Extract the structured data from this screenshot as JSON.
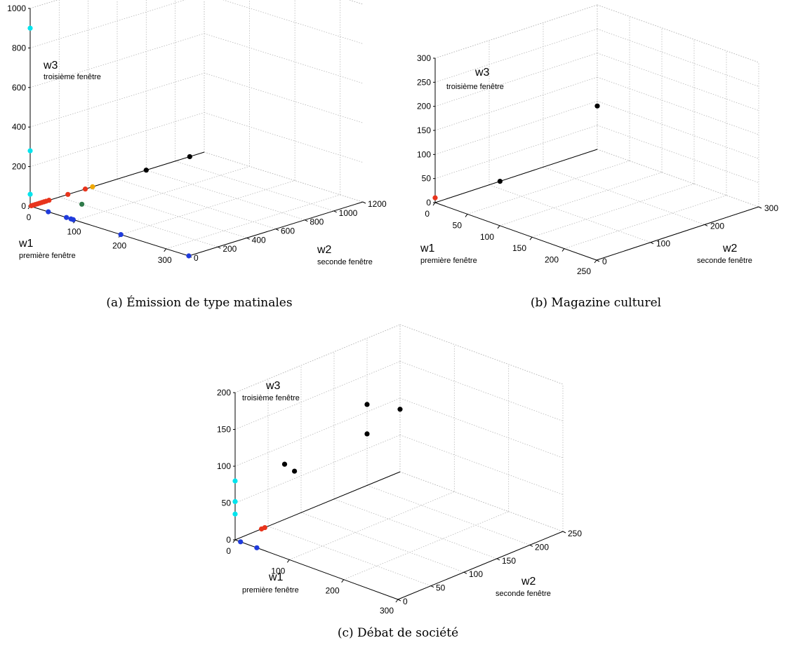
{
  "chart_data": [
    {
      "type": "scatter3d",
      "caption": "(a) Émission de type matinales",
      "axes": {
        "x": {
          "name": "w1",
          "sub": "première fenêtre",
          "range": [
            0,
            350
          ],
          "ticks": [
            0,
            100,
            200,
            300
          ]
        },
        "y": {
          "name": "w2",
          "sub": "seconde fenêtre",
          "range": [
            0,
            1200
          ],
          "ticks": [
            0,
            200,
            400,
            600,
            800,
            1000,
            1200
          ]
        },
        "z": {
          "name": "w3",
          "sub": "troisième fenêtre",
          "range": [
            0,
            1000
          ],
          "ticks": [
            0,
            200,
            400,
            600,
            800,
            1000
          ]
        }
      },
      "grid": true,
      "points": [
        {
          "x": 0,
          "y": 0,
          "z": 900,
          "color": "#00e5ee"
        },
        {
          "x": 0,
          "y": 0,
          "z": 280,
          "color": "#00e5ee"
        },
        {
          "x": 0,
          "y": 0,
          "z": 60,
          "color": "#00e5ee"
        },
        {
          "x": 40,
          "y": 0,
          "z": 0,
          "color": "#1f3bdc"
        },
        {
          "x": 80,
          "y": 0,
          "z": 0,
          "color": "#1f3bdc"
        },
        {
          "x": 90,
          "y": 0,
          "z": 0,
          "color": "#1f3bdc"
        },
        {
          "x": 95,
          "y": 0,
          "z": 0,
          "color": "#1f3bdc"
        },
        {
          "x": 200,
          "y": 0,
          "z": 0,
          "color": "#1f3bdc"
        },
        {
          "x": 350,
          "y": 0,
          "z": 0,
          "color": "#1f3bdc"
        },
        {
          "x": 0,
          "y": 8,
          "z": 0,
          "color": "#e8341c"
        },
        {
          "x": 0,
          "y": 20,
          "z": 0,
          "color": "#e8341c"
        },
        {
          "x": 0,
          "y": 35,
          "z": 0,
          "color": "#e8341c"
        },
        {
          "x": 0,
          "y": 50,
          "z": 0,
          "color": "#e8341c"
        },
        {
          "x": 0,
          "y": 65,
          "z": 0,
          "color": "#e8341c"
        },
        {
          "x": 0,
          "y": 80,
          "z": 0,
          "color": "#e8341c"
        },
        {
          "x": 0,
          "y": 95,
          "z": 0,
          "color": "#e8341c"
        },
        {
          "x": 0,
          "y": 110,
          "z": 0,
          "color": "#e8341c"
        },
        {
          "x": 0,
          "y": 130,
          "z": 0,
          "color": "#e8341c"
        },
        {
          "x": 0,
          "y": 260,
          "z": 0,
          "color": "#e8341c"
        },
        {
          "x": 0,
          "y": 380,
          "z": 0,
          "color": "#e8341c"
        },
        {
          "x": 0,
          "y": 430,
          "z": 0,
          "color": "#f0a800"
        },
        {
          "x": 0,
          "y": 1100,
          "z": 0,
          "color": "#000000"
        },
        {
          "x": 0,
          "y": 800,
          "z": 0,
          "color": "#000000"
        },
        {
          "x": 50,
          "y": 200,
          "z": 0,
          "color": "#2f7a4a"
        }
      ]
    },
    {
      "type": "scatter3d",
      "caption": "(b) Magazine culturel",
      "axes": {
        "x": {
          "name": "w1",
          "sub": "première fenêtre",
          "range": [
            0,
            250
          ],
          "ticks": [
            0,
            50,
            100,
            150,
            200,
            250
          ]
        },
        "y": {
          "name": "w2",
          "sub": "seconde fenêtre",
          "range": [
            0,
            300
          ],
          "ticks": [
            0,
            100,
            200,
            300
          ]
        },
        "z": {
          "name": "w3",
          "sub": "troisième fenêtre",
          "range": [
            0,
            300
          ],
          "ticks": [
            0,
            50,
            100,
            150,
            200,
            250,
            300
          ]
        }
      },
      "grid": true,
      "points": [
        {
          "x": 0,
          "y": 0,
          "z": 10,
          "color": "#e8341c"
        },
        {
          "x": 0,
          "y": 120,
          "z": 0,
          "color": "#000000"
        },
        {
          "x": 0,
          "y": 300,
          "z": 90,
          "color": "#000000"
        }
      ]
    },
    {
      "type": "scatter3d",
      "caption": "(c) Débat de société",
      "axes": {
        "x": {
          "name": "w1",
          "sub": "première fenêtre",
          "range": [
            0,
            300
          ],
          "ticks": [
            0,
            100,
            200,
            300
          ]
        },
        "y": {
          "name": "w2",
          "sub": "seconde fenêtre",
          "range": [
            0,
            250
          ],
          "ticks": [
            0,
            50,
            100,
            150,
            200,
            250
          ]
        },
        "z": {
          "name": "w3",
          "sub": "troisième fenêtre",
          "range": [
            0,
            200
          ],
          "ticks": [
            0,
            50,
            100,
            150,
            200
          ]
        }
      },
      "grid": true,
      "points": [
        {
          "x": 0,
          "y": 0,
          "z": 80,
          "color": "#00e5ee"
        },
        {
          "x": 0,
          "y": 0,
          "z": 52,
          "color": "#00e5ee"
        },
        {
          "x": 0,
          "y": 0,
          "z": 35,
          "color": "#00e5ee"
        },
        {
          "x": 10,
          "y": 0,
          "z": 0,
          "color": "#1f3bdc"
        },
        {
          "x": 40,
          "y": 0,
          "z": 0,
          "color": "#1f3bdc"
        },
        {
          "x": 0,
          "y": 40,
          "z": 0,
          "color": "#e8341c"
        },
        {
          "x": 0,
          "y": 45,
          "z": 0,
          "color": "#e8341c"
        },
        {
          "x": 0,
          "y": 75,
          "z": 75,
          "color": "#000000"
        },
        {
          "x": 0,
          "y": 90,
          "z": 60,
          "color": "#000000"
        },
        {
          "x": 0,
          "y": 200,
          "z": 110,
          "color": "#000000"
        },
        {
          "x": 0,
          "y": 200,
          "z": 70,
          "color": "#000000"
        },
        {
          "x": 0,
          "y": 250,
          "z": 85,
          "color": "#000000"
        }
      ]
    }
  ]
}
